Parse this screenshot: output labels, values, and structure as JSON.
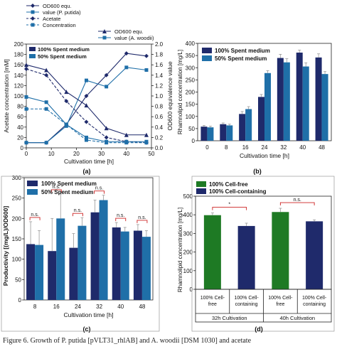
{
  "caption": "Figure 6. Growth of P. putida [pVLT31_rhlAB] and A. woodii [DSM 1030] and acetate",
  "colors": {
    "dark_navy": "#1f2a6b",
    "mid_blue": "#1f6fa8",
    "green": "#1e7a24",
    "sig_red": "#cc2222"
  },
  "chart_data": [
    {
      "panel_label": "(a)",
      "type": "line",
      "xlabel": "Cultivation time [h]",
      "ylabel_left": "Acetate concentration [mM]",
      "ylabel_right": "OD600 equivalence  value",
      "xlim": [
        0,
        50
      ],
      "xticks": [
        0,
        10,
        20,
        30,
        40,
        50
      ],
      "ylim_left": [
        0,
        200
      ],
      "yticks_left": [
        0,
        20,
        40,
        60,
        80,
        100,
        120,
        140,
        160,
        180,
        200
      ],
      "ylim_right": [
        0,
        2.0
      ],
      "yticks_right": [
        0.0,
        0.2,
        0.4,
        0.6,
        0.8,
        1.0,
        1.2,
        1.4,
        1.6,
        1.8,
        2.0
      ],
      "legend_top": {
        "headers": [
          "OD600 equ.",
          "value (P. putida)",
          "Acetate",
          "Concentration",
          "OD600 equ.",
          "value (A. woodii)"
        ],
        "entries": [
          "100% Spent medium",
          "50% Spent medium"
        ]
      },
      "series": [
        {
          "name": "P. putida OD600 100%",
          "axis": "right",
          "style": "solid-diamond",
          "color": "#1f2a6b",
          "x": [
            0,
            8,
            16,
            24,
            32,
            40,
            48
          ],
          "y": [
            0.1,
            0.1,
            0.45,
            1.0,
            1.4,
            1.82,
            1.77
          ]
        },
        {
          "name": "P. putida OD600 50%",
          "axis": "right",
          "style": "solid-square",
          "color": "#1f6fa8",
          "x": [
            0,
            8,
            16,
            24,
            32,
            40,
            48
          ],
          "y": [
            0.1,
            0.1,
            0.42,
            1.3,
            1.18,
            1.55,
            1.5
          ]
        },
        {
          "name": "Acetate 100%",
          "axis": "left",
          "style": "dash-diamond",
          "color": "#1f2a6b",
          "x": [
            0,
            8,
            16,
            24,
            32,
            40,
            48
          ],
          "y": [
            152,
            140,
            90,
            50,
            20,
            12,
            10
          ]
        },
        {
          "name": "Acetate 50%",
          "axis": "left",
          "style": "dash-square",
          "color": "#1f6fa8",
          "x": [
            0,
            8,
            16,
            24,
            32,
            40,
            48
          ],
          "y": [
            75,
            75,
            45,
            15,
            10,
            10,
            10
          ]
        },
        {
          "name": "A. woodii OD600 100%",
          "axis": "right",
          "style": "solid-triangle",
          "color": "#1f2a6b",
          "x": [
            0,
            8,
            16,
            24,
            32,
            40,
            48
          ],
          "y": [
            1.6,
            1.5,
            1.08,
            0.82,
            0.38,
            0.25,
            0.25
          ]
        },
        {
          "name": "A. woodii OD600 50%",
          "axis": "right",
          "style": "solid-square",
          "color": "#1f6fa8",
          "x": [
            0,
            8,
            16,
            24,
            32,
            40,
            48
          ],
          "y": [
            0.98,
            0.88,
            0.45,
            0.2,
            0.12,
            0.12,
            0.12
          ]
        }
      ]
    },
    {
      "panel_label": "(b)",
      "type": "bar",
      "xlabel": "Cultivation time [h]",
      "ylabel": "Rhamnolipid concentration [mg/L]",
      "ylim": [
        0,
        400
      ],
      "yticks": [
        0,
        50,
        100,
        150,
        200,
        250,
        300,
        350,
        400
      ],
      "categories": [
        "0",
        "8",
        "16",
        "24",
        "32",
        "40",
        "48"
      ],
      "series": [
        {
          "name": "100% Spent medium",
          "color": "#1f2a6b",
          "values": [
            58,
            68,
            110,
            180,
            340,
            362,
            342
          ],
          "errors": [
            5,
            5,
            10,
            10,
            15,
            10,
            15
          ]
        },
        {
          "name": "50% Spent medium",
          "color": "#1f6fa8",
          "values": [
            55,
            63,
            130,
            278,
            322,
            305,
            274
          ],
          "errors": [
            5,
            5,
            10,
            10,
            15,
            15,
            10
          ]
        }
      ]
    },
    {
      "panel_label": "(c)",
      "type": "bar",
      "xlabel": "Cultivation time [h]",
      "ylabel": "Productivity [(mg/L)/OD600]",
      "ylim": [
        0,
        300
      ],
      "yticks": [
        0,
        50,
        100,
        150,
        200,
        250,
        300
      ],
      "categories": [
        "8",
        "16",
        "24",
        "32",
        "40",
        "48"
      ],
      "significance": [
        "n.s.",
        "n.s.",
        "n.s.",
        "n.s.",
        "n.s.",
        "n.s."
      ],
      "series": [
        {
          "name": "100% Spent medium",
          "color": "#1f2a6b",
          "values": [
            137,
            120,
            128,
            215,
            178,
            170
          ],
          "errors": [
            55,
            80,
            35,
            30,
            12,
            15
          ]
        },
        {
          "name": "50% Spent medium",
          "color": "#1f6fa8",
          "values": [
            135,
            200,
            182,
            245,
            168,
            155
          ],
          "errors": [
            35,
            60,
            20,
            12,
            10,
            15
          ]
        }
      ]
    },
    {
      "panel_label": "(d)",
      "type": "bar",
      "ylabel": "Rhamnolipid concentration [mg/L]",
      "ylim": [
        0,
        500
      ],
      "yticks": [
        0,
        100,
        200,
        300,
        400,
        500
      ],
      "groups": [
        "32h Cultivation",
        "40h Cultivation"
      ],
      "significance": [
        "*",
        "n.s."
      ],
      "category_labels": [
        "100% Cell-\nfree",
        "100% Cell-\ncontaining",
        "100% Cell-\nfree",
        "100% Cell-\ncontaining"
      ],
      "series": [
        {
          "name": "100% Cell-free",
          "color": "#1e7a24",
          "values": [
            398,
            415
          ],
          "errors": [
            12,
            20
          ]
        },
        {
          "name": "100% Cell-containing",
          "color": "#1f2a6b",
          "values": [
            340,
            365
          ],
          "errors": [
            15,
            8
          ]
        }
      ]
    }
  ]
}
